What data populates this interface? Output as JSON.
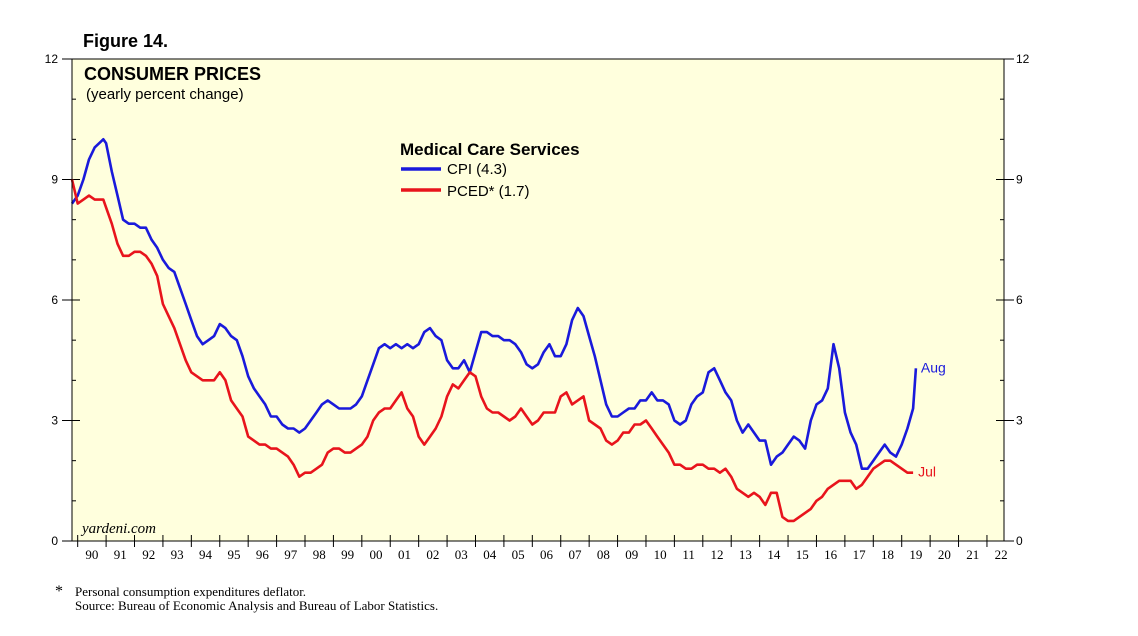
{
  "figure_label": "Figure 14.",
  "footnote": {
    "star": "*",
    "text": "Personal consumption expenditures deflator.",
    "source": "Source: Bureau of Economic Analysis and Bureau of Labor Statistics."
  },
  "chart_data": {
    "type": "line",
    "title": "CONSUMER PRICES",
    "subtitle": "(yearly percent change)",
    "legend_title": "Medical Care Services",
    "watermark": "yardeni.com",
    "x_range": [
      1989.8,
      2022.6
    ],
    "ylim": [
      0,
      12
    ],
    "yticks": [
      0,
      3,
      6,
      9,
      12
    ],
    "xtick_labels": [
      "90",
      "91",
      "92",
      "93",
      "94",
      "95",
      "96",
      "97",
      "98",
      "99",
      "00",
      "01",
      "02",
      "03",
      "04",
      "05",
      "06",
      "07",
      "08",
      "09",
      "10",
      "11",
      "12",
      "13",
      "14",
      "15",
      "16",
      "17",
      "18",
      "19",
      "20",
      "21",
      "22"
    ],
    "colors": {
      "background": "#ffffdd",
      "cpi": "#1a1adb",
      "pced": "#e8141c"
    },
    "series": [
      {
        "name": "CPI",
        "legend_label": "CPI (4.3)",
        "end_label": "Aug",
        "points": [
          [
            1989.8,
            8.4
          ],
          [
            1990.0,
            8.6
          ],
          [
            1990.2,
            9.0
          ],
          [
            1990.4,
            9.5
          ],
          [
            1990.6,
            9.8
          ],
          [
            1990.9,
            10.0
          ],
          [
            1991.0,
            9.9
          ],
          [
            1991.2,
            9.2
          ],
          [
            1991.4,
            8.6
          ],
          [
            1991.6,
            8.0
          ],
          [
            1991.8,
            7.9
          ],
          [
            1992.0,
            7.9
          ],
          [
            1992.2,
            7.8
          ],
          [
            1992.4,
            7.8
          ],
          [
            1992.6,
            7.5
          ],
          [
            1992.8,
            7.3
          ],
          [
            1993.0,
            7.0
          ],
          [
            1993.2,
            6.8
          ],
          [
            1993.4,
            6.7
          ],
          [
            1993.6,
            6.3
          ],
          [
            1993.8,
            5.9
          ],
          [
            1994.0,
            5.5
          ],
          [
            1994.2,
            5.1
          ],
          [
            1994.4,
            4.9
          ],
          [
            1994.6,
            5.0
          ],
          [
            1994.8,
            5.1
          ],
          [
            1995.0,
            5.4
          ],
          [
            1995.2,
            5.3
          ],
          [
            1995.4,
            5.1
          ],
          [
            1995.6,
            5.0
          ],
          [
            1995.8,
            4.6
          ],
          [
            1996.0,
            4.1
          ],
          [
            1996.2,
            3.8
          ],
          [
            1996.4,
            3.6
          ],
          [
            1996.6,
            3.4
          ],
          [
            1996.8,
            3.1
          ],
          [
            1997.0,
            3.1
          ],
          [
            1997.2,
            2.9
          ],
          [
            1997.4,
            2.8
          ],
          [
            1997.6,
            2.8
          ],
          [
            1997.8,
            2.7
          ],
          [
            1998.0,
            2.8
          ],
          [
            1998.2,
            3.0
          ],
          [
            1998.4,
            3.2
          ],
          [
            1998.6,
            3.4
          ],
          [
            1998.8,
            3.5
          ],
          [
            1999.0,
            3.4
          ],
          [
            1999.2,
            3.3
          ],
          [
            1999.4,
            3.3
          ],
          [
            1999.6,
            3.3
          ],
          [
            1999.8,
            3.4
          ],
          [
            2000.0,
            3.6
          ],
          [
            2000.2,
            4.0
          ],
          [
            2000.4,
            4.4
          ],
          [
            2000.6,
            4.8
          ],
          [
            2000.8,
            4.9
          ],
          [
            2001.0,
            4.8
          ],
          [
            2001.2,
            4.9
          ],
          [
            2001.4,
            4.8
          ],
          [
            2001.6,
            4.9
          ],
          [
            2001.8,
            4.8
          ],
          [
            2002.0,
            4.9
          ],
          [
            2002.2,
            5.2
          ],
          [
            2002.4,
            5.3
          ],
          [
            2002.6,
            5.1
          ],
          [
            2002.8,
            5.0
          ],
          [
            2003.0,
            4.5
          ],
          [
            2003.2,
            4.3
          ],
          [
            2003.4,
            4.3
          ],
          [
            2003.6,
            4.5
          ],
          [
            2003.8,
            4.2
          ],
          [
            2004.0,
            4.7
          ],
          [
            2004.2,
            5.2
          ],
          [
            2004.4,
            5.2
          ],
          [
            2004.6,
            5.1
          ],
          [
            2004.8,
            5.1
          ],
          [
            2005.0,
            5.0
          ],
          [
            2005.2,
            5.0
          ],
          [
            2005.4,
            4.9
          ],
          [
            2005.6,
            4.7
          ],
          [
            2005.8,
            4.4
          ],
          [
            2006.0,
            4.3
          ],
          [
            2006.2,
            4.4
          ],
          [
            2006.4,
            4.7
          ],
          [
            2006.6,
            4.9
          ],
          [
            2006.8,
            4.6
          ],
          [
            2007.0,
            4.6
          ],
          [
            2007.2,
            4.9
          ],
          [
            2007.4,
            5.5
          ],
          [
            2007.6,
            5.8
          ],
          [
            2007.8,
            5.6
          ],
          [
            2008.0,
            5.1
          ],
          [
            2008.2,
            4.6
          ],
          [
            2008.4,
            4.0
          ],
          [
            2008.6,
            3.4
          ],
          [
            2008.8,
            3.1
          ],
          [
            2009.0,
            3.1
          ],
          [
            2009.2,
            3.2
          ],
          [
            2009.4,
            3.3
          ],
          [
            2009.6,
            3.3
          ],
          [
            2009.8,
            3.5
          ],
          [
            2010.0,
            3.5
          ],
          [
            2010.2,
            3.7
          ],
          [
            2010.4,
            3.5
          ],
          [
            2010.6,
            3.5
          ],
          [
            2010.8,
            3.4
          ],
          [
            2011.0,
            3.0
          ],
          [
            2011.2,
            2.9
          ],
          [
            2011.4,
            3.0
          ],
          [
            2011.6,
            3.4
          ],
          [
            2011.8,
            3.6
          ],
          [
            2012.0,
            3.7
          ],
          [
            2012.2,
            4.2
          ],
          [
            2012.4,
            4.3
          ],
          [
            2012.6,
            4.0
          ],
          [
            2012.8,
            3.7
          ],
          [
            2013.0,
            3.5
          ],
          [
            2013.2,
            3.0
          ],
          [
            2013.4,
            2.7
          ],
          [
            2013.6,
            2.9
          ],
          [
            2013.8,
            2.7
          ],
          [
            2014.0,
            2.5
          ],
          [
            2014.2,
            2.5
          ],
          [
            2014.4,
            1.9
          ],
          [
            2014.6,
            2.1
          ],
          [
            2014.8,
            2.2
          ],
          [
            2015.0,
            2.4
          ],
          [
            2015.2,
            2.6
          ],
          [
            2015.4,
            2.5
          ],
          [
            2015.6,
            2.3
          ],
          [
            2015.8,
            3.0
          ],
          [
            2016.0,
            3.4
          ],
          [
            2016.2,
            3.5
          ],
          [
            2016.4,
            3.8
          ],
          [
            2016.6,
            4.9
          ],
          [
            2016.8,
            4.3
          ],
          [
            2017.0,
            3.2
          ],
          [
            2017.2,
            2.7
          ],
          [
            2017.4,
            2.4
          ],
          [
            2017.6,
            1.8
          ],
          [
            2017.8,
            1.8
          ],
          [
            2018.0,
            2.0
          ],
          [
            2018.2,
            2.2
          ],
          [
            2018.4,
            2.4
          ],
          [
            2018.6,
            2.2
          ],
          [
            2018.8,
            2.1
          ],
          [
            2019.0,
            2.4
          ],
          [
            2019.2,
            2.8
          ],
          [
            2019.4,
            3.3
          ],
          [
            2019.5,
            4.3
          ]
        ]
      },
      {
        "name": "PCED*",
        "legend_label": "PCED* (1.7)",
        "end_label": "Jul",
        "points": [
          [
            1989.8,
            9.0
          ],
          [
            1990.0,
            8.4
          ],
          [
            1990.2,
            8.5
          ],
          [
            1990.4,
            8.6
          ],
          [
            1990.6,
            8.5
          ],
          [
            1990.9,
            8.5
          ],
          [
            1991.0,
            8.3
          ],
          [
            1991.2,
            7.9
          ],
          [
            1991.4,
            7.4
          ],
          [
            1991.6,
            7.1
          ],
          [
            1991.8,
            7.1
          ],
          [
            1992.0,
            7.2
          ],
          [
            1992.2,
            7.2
          ],
          [
            1992.4,
            7.1
          ],
          [
            1992.6,
            6.9
          ],
          [
            1992.8,
            6.6
          ],
          [
            1993.0,
            5.9
          ],
          [
            1993.2,
            5.6
          ],
          [
            1993.4,
            5.3
          ],
          [
            1993.6,
            4.9
          ],
          [
            1993.8,
            4.5
          ],
          [
            1994.0,
            4.2
          ],
          [
            1994.2,
            4.1
          ],
          [
            1994.4,
            4.0
          ],
          [
            1994.6,
            4.0
          ],
          [
            1994.8,
            4.0
          ],
          [
            1995.0,
            4.2
          ],
          [
            1995.2,
            4.0
          ],
          [
            1995.4,
            3.5
          ],
          [
            1995.6,
            3.3
          ],
          [
            1995.8,
            3.1
          ],
          [
            1996.0,
            2.6
          ],
          [
            1996.2,
            2.5
          ],
          [
            1996.4,
            2.4
          ],
          [
            1996.6,
            2.4
          ],
          [
            1996.8,
            2.3
          ],
          [
            1997.0,
            2.3
          ],
          [
            1997.2,
            2.2
          ],
          [
            1997.4,
            2.1
          ],
          [
            1997.6,
            1.9
          ],
          [
            1997.8,
            1.6
          ],
          [
            1998.0,
            1.7
          ],
          [
            1998.2,
            1.7
          ],
          [
            1998.4,
            1.8
          ],
          [
            1998.6,
            1.9
          ],
          [
            1998.8,
            2.2
          ],
          [
            1999.0,
            2.3
          ],
          [
            1999.2,
            2.3
          ],
          [
            1999.4,
            2.2
          ],
          [
            1999.6,
            2.2
          ],
          [
            1999.8,
            2.3
          ],
          [
            2000.0,
            2.4
          ],
          [
            2000.2,
            2.6
          ],
          [
            2000.4,
            3.0
          ],
          [
            2000.6,
            3.2
          ],
          [
            2000.8,
            3.3
          ],
          [
            2001.0,
            3.3
          ],
          [
            2001.2,
            3.5
          ],
          [
            2001.4,
            3.7
          ],
          [
            2001.6,
            3.3
          ],
          [
            2001.8,
            3.1
          ],
          [
            2002.0,
            2.6
          ],
          [
            2002.2,
            2.4
          ],
          [
            2002.4,
            2.6
          ],
          [
            2002.6,
            2.8
          ],
          [
            2002.8,
            3.1
          ],
          [
            2003.0,
            3.6
          ],
          [
            2003.2,
            3.9
          ],
          [
            2003.4,
            3.8
          ],
          [
            2003.6,
            4.0
          ],
          [
            2003.8,
            4.2
          ],
          [
            2004.0,
            4.1
          ],
          [
            2004.2,
            3.6
          ],
          [
            2004.4,
            3.3
          ],
          [
            2004.6,
            3.2
          ],
          [
            2004.8,
            3.2
          ],
          [
            2005.0,
            3.1
          ],
          [
            2005.2,
            3.0
          ],
          [
            2005.4,
            3.1
          ],
          [
            2005.6,
            3.3
          ],
          [
            2005.8,
            3.1
          ],
          [
            2006.0,
            2.9
          ],
          [
            2006.2,
            3.0
          ],
          [
            2006.4,
            3.2
          ],
          [
            2006.6,
            3.2
          ],
          [
            2006.8,
            3.2
          ],
          [
            2007.0,
            3.6
          ],
          [
            2007.2,
            3.7
          ],
          [
            2007.4,
            3.4
          ],
          [
            2007.6,
            3.5
          ],
          [
            2007.8,
            3.6
          ],
          [
            2008.0,
            3.0
          ],
          [
            2008.2,
            2.9
          ],
          [
            2008.4,
            2.8
          ],
          [
            2008.6,
            2.5
          ],
          [
            2008.8,
            2.4
          ],
          [
            2009.0,
            2.5
          ],
          [
            2009.2,
            2.7
          ],
          [
            2009.4,
            2.7
          ],
          [
            2009.6,
            2.9
          ],
          [
            2009.8,
            2.9
          ],
          [
            2010.0,
            3.0
          ],
          [
            2010.2,
            2.8
          ],
          [
            2010.4,
            2.6
          ],
          [
            2010.6,
            2.4
          ],
          [
            2010.8,
            2.2
          ],
          [
            2011.0,
            1.9
          ],
          [
            2011.2,
            1.9
          ],
          [
            2011.4,
            1.8
          ],
          [
            2011.6,
            1.8
          ],
          [
            2011.8,
            1.9
          ],
          [
            2012.0,
            1.9
          ],
          [
            2012.2,
            1.8
          ],
          [
            2012.4,
            1.8
          ],
          [
            2012.6,
            1.7
          ],
          [
            2012.8,
            1.8
          ],
          [
            2013.0,
            1.6
          ],
          [
            2013.2,
            1.3
          ],
          [
            2013.4,
            1.2
          ],
          [
            2013.6,
            1.1
          ],
          [
            2013.8,
            1.2
          ],
          [
            2014.0,
            1.1
          ],
          [
            2014.2,
            0.9
          ],
          [
            2014.4,
            1.2
          ],
          [
            2014.6,
            1.2
          ],
          [
            2014.8,
            0.6
          ],
          [
            2015.0,
            0.5
          ],
          [
            2015.2,
            0.5
          ],
          [
            2015.4,
            0.6
          ],
          [
            2015.6,
            0.7
          ],
          [
            2015.8,
            0.8
          ],
          [
            2016.0,
            1.0
          ],
          [
            2016.2,
            1.1
          ],
          [
            2016.4,
            1.3
          ],
          [
            2016.6,
            1.4
          ],
          [
            2016.8,
            1.5
          ],
          [
            2017.0,
            1.5
          ],
          [
            2017.2,
            1.5
          ],
          [
            2017.4,
            1.3
          ],
          [
            2017.6,
            1.4
          ],
          [
            2017.8,
            1.6
          ],
          [
            2018.0,
            1.8
          ],
          [
            2018.2,
            1.9
          ],
          [
            2018.4,
            2.0
          ],
          [
            2018.6,
            2.0
          ],
          [
            2018.8,
            1.9
          ],
          [
            2019.0,
            1.8
          ],
          [
            2019.2,
            1.7
          ],
          [
            2019.4,
            1.7
          ]
        ]
      }
    ]
  }
}
